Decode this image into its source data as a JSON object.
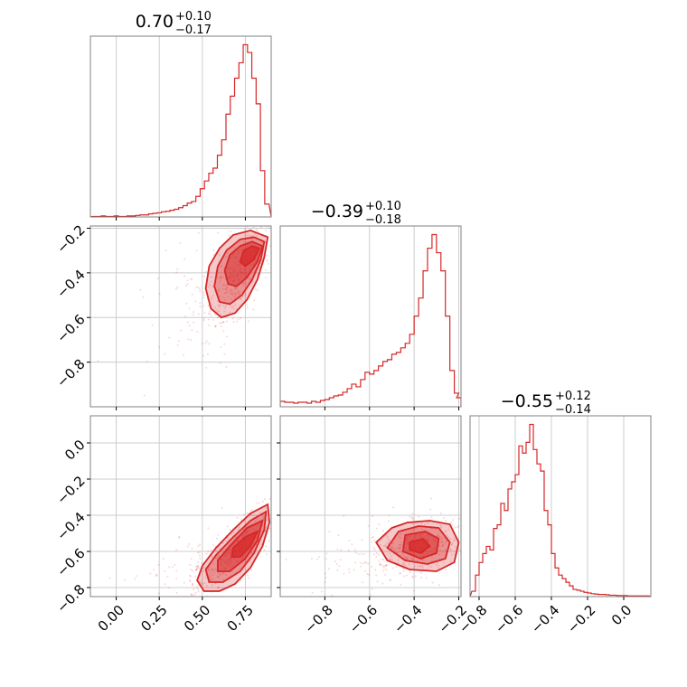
{
  "chart_data": {
    "type": "corner",
    "color": "#d62728",
    "grid": true,
    "parameters": [
      {
        "title_value": "0.70",
        "err_plus": "+0.10",
        "err_minus": "−0.17",
        "range": [
          -0.15,
          0.9
        ],
        "ticks": [
          0.0,
          0.25,
          0.5,
          0.75
        ],
        "tick_labels": [
          "0.00",
          "0.25",
          "0.50",
          "0.75"
        ],
        "hist_centers": [
          -0.125,
          -0.1,
          -0.075,
          -0.05,
          -0.025,
          0.0,
          0.025,
          0.05,
          0.075,
          0.1,
          0.125,
          0.15,
          0.175,
          0.2,
          0.225,
          0.25,
          0.275,
          0.3,
          0.325,
          0.35,
          0.375,
          0.4,
          0.425,
          0.45,
          0.475,
          0.5,
          0.525,
          0.55,
          0.575,
          0.6,
          0.625,
          0.65,
          0.675,
          0.7,
          0.725,
          0.75,
          0.775,
          0.8,
          0.825,
          0.85,
          0.875
        ],
        "hist_counts": [
          1,
          1,
          2,
          1,
          1,
          2,
          1,
          1,
          2,
          2,
          3,
          4,
          4,
          6,
          7,
          8,
          10,
          11,
          13,
          15,
          18,
          22,
          27,
          30,
          40,
          55,
          70,
          85,
          95,
          120,
          150,
          200,
          235,
          270,
          300,
          335,
          320,
          270,
          220,
          90,
          25
        ]
      },
      {
        "title_value": "−0.39",
        "err_plus": "+0.10",
        "err_minus": "−0.18",
        "range": [
          -1.0,
          -0.19
        ],
        "ticks": [
          -0.8,
          -0.6,
          -0.4,
          -0.2
        ],
        "tick_labels": [
          "−0.8",
          "−0.6",
          "−0.4",
          "−0.2"
        ],
        "hist_centers": [
          -0.99,
          -0.97,
          -0.95,
          -0.93,
          -0.91,
          -0.89,
          -0.87,
          -0.85,
          -0.83,
          -0.81,
          -0.79,
          -0.77,
          -0.75,
          -0.73,
          -0.71,
          -0.69,
          -0.67,
          -0.65,
          -0.63,
          -0.61,
          -0.59,
          -0.57,
          -0.55,
          -0.53,
          -0.51,
          -0.49,
          -0.47,
          -0.45,
          -0.43,
          -0.41,
          -0.39,
          -0.37,
          -0.35,
          -0.33,
          -0.31,
          -0.29,
          -0.27,
          -0.25,
          -0.23,
          -0.21,
          -0.2
        ],
        "hist_counts": [
          6,
          5,
          5,
          4,
          5,
          5,
          4,
          6,
          5,
          7,
          8,
          10,
          12,
          13,
          16,
          20,
          25,
          22,
          30,
          38,
          36,
          40,
          45,
          50,
          52,
          58,
          60,
          65,
          70,
          80,
          100,
          120,
          150,
          175,
          190,
          170,
          150,
          100,
          40,
          15,
          10
        ]
      },
      {
        "title_value": "−0.55",
        "err_plus": "+0.12",
        "err_minus": "−0.14",
        "range": [
          -0.85,
          0.15
        ],
        "ticks": [
          -0.8,
          -0.6,
          -0.4,
          -0.2,
          0.0
        ],
        "tick_labels": [
          "−0.8",
          "−0.6",
          "−0.4",
          "−0.2",
          "0.0"
        ],
        "hist_centers": [
          -0.83,
          -0.81,
          -0.79,
          -0.77,
          -0.75,
          -0.73,
          -0.71,
          -0.69,
          -0.67,
          -0.65,
          -0.63,
          -0.61,
          -0.59,
          -0.57,
          -0.55,
          -0.53,
          -0.51,
          -0.49,
          -0.47,
          -0.45,
          -0.43,
          -0.41,
          -0.39,
          -0.37,
          -0.35,
          -0.33,
          -0.31,
          -0.29,
          -0.27,
          -0.25,
          -0.23,
          -0.21,
          -0.19,
          -0.17,
          -0.15,
          -0.13,
          -0.11,
          -0.09,
          -0.07,
          -0.05,
          -0.03,
          -0.01,
          0.01,
          0.03,
          0.05,
          0.07,
          0.09,
          0.11,
          0.13
        ],
        "hist_counts": [
          15,
          60,
          95,
          120,
          140,
          130,
          190,
          200,
          260,
          240,
          300,
          320,
          340,
          420,
          400,
          430,
          480,
          410,
          370,
          350,
          240,
          200,
          120,
          80,
          60,
          50,
          40,
          30,
          20,
          18,
          15,
          12,
          10,
          8,
          7,
          6,
          6,
          5,
          4,
          4,
          3,
          3,
          3,
          2,
          2,
          2,
          2,
          2,
          2
        ]
      }
    ],
    "pairs": [
      {
        "row": 1,
        "col": 0,
        "mean": [
          0.72,
          -0.38
        ],
        "sd": [
          0.1,
          0.11
        ],
        "corr": 0.7,
        "contour_levels": [
          [
            [
              0.88,
              -0.24
            ],
            [
              0.86,
              -0.33
            ],
            [
              0.82,
              -0.43
            ],
            [
              0.76,
              -0.52
            ],
            [
              0.69,
              -0.58
            ],
            [
              0.61,
              -0.6
            ],
            [
              0.55,
              -0.56
            ],
            [
              0.52,
              -0.47
            ],
            [
              0.54,
              -0.37
            ],
            [
              0.6,
              -0.29
            ],
            [
              0.68,
              -0.23
            ],
            [
              0.78,
              -0.21
            ]
          ],
          [
            [
              0.86,
              -0.26
            ],
            [
              0.84,
              -0.34
            ],
            [
              0.79,
              -0.43
            ],
            [
              0.73,
              -0.5
            ],
            [
              0.66,
              -0.54
            ],
            [
              0.6,
              -0.53
            ],
            [
              0.57,
              -0.46
            ],
            [
              0.59,
              -0.37
            ],
            [
              0.64,
              -0.3
            ],
            [
              0.72,
              -0.25
            ],
            [
              0.8,
              -0.24
            ]
          ],
          [
            [
              0.85,
              -0.28
            ],
            [
              0.82,
              -0.35
            ],
            [
              0.76,
              -0.42
            ],
            [
              0.7,
              -0.46
            ],
            [
              0.65,
              -0.45
            ],
            [
              0.63,
              -0.39
            ],
            [
              0.66,
              -0.32
            ],
            [
              0.72,
              -0.28
            ],
            [
              0.79,
              -0.26
            ]
          ],
          [
            [
              0.83,
              -0.29
            ],
            [
              0.8,
              -0.34
            ],
            [
              0.75,
              -0.37
            ],
            [
              0.72,
              -0.35
            ],
            [
              0.74,
              -0.3
            ],
            [
              0.79,
              -0.28
            ]
          ]
        ]
      },
      {
        "row": 2,
        "col": 0,
        "mean": [
          0.7,
          -0.58
        ],
        "sd": [
          0.1,
          0.1
        ],
        "corr": 0.8,
        "contour_levels": [
          [
            [
              0.88,
              -0.34
            ],
            [
              0.89,
              -0.44
            ],
            [
              0.85,
              -0.57
            ],
            [
              0.78,
              -0.69
            ],
            [
              0.69,
              -0.78
            ],
            [
              0.6,
              -0.82
            ],
            [
              0.51,
              -0.82
            ],
            [
              0.47,
              -0.76
            ],
            [
              0.5,
              -0.68
            ],
            [
              0.58,
              -0.58
            ],
            [
              0.68,
              -0.48
            ],
            [
              0.78,
              -0.39
            ]
          ],
          [
            [
              0.87,
              -0.38
            ],
            [
              0.86,
              -0.48
            ],
            [
              0.8,
              -0.61
            ],
            [
              0.72,
              -0.71
            ],
            [
              0.62,
              -0.77
            ],
            [
              0.54,
              -0.77
            ],
            [
              0.52,
              -0.7
            ],
            [
              0.58,
              -0.62
            ],
            [
              0.68,
              -0.52
            ],
            [
              0.78,
              -0.43
            ]
          ],
          [
            [
              0.85,
              -0.43
            ],
            [
              0.82,
              -0.54
            ],
            [
              0.75,
              -0.64
            ],
            [
              0.66,
              -0.71
            ],
            [
              0.59,
              -0.71
            ],
            [
              0.59,
              -0.65
            ],
            [
              0.66,
              -0.57
            ],
            [
              0.76,
              -0.47
            ]
          ],
          [
            [
              0.82,
              -0.49
            ],
            [
              0.78,
              -0.57
            ],
            [
              0.72,
              -0.63
            ],
            [
              0.67,
              -0.63
            ],
            [
              0.68,
              -0.58
            ],
            [
              0.75,
              -0.52
            ]
          ]
        ]
      },
      {
        "row": 2,
        "col": 1,
        "mean": [
          -0.36,
          -0.56
        ],
        "sd": [
          0.1,
          0.07
        ],
        "corr": 0.15,
        "contour_levels": [
          [
            [
              -0.5,
              -0.47
            ],
            [
              -0.43,
              -0.44
            ],
            [
              -0.33,
              -0.43
            ],
            [
              -0.24,
              -0.45
            ],
            [
              -0.2,
              -0.55
            ],
            [
              -0.22,
              -0.66
            ],
            [
              -0.3,
              -0.71
            ],
            [
              -0.42,
              -0.7
            ],
            [
              -0.52,
              -0.65
            ],
            [
              -0.57,
              -0.55
            ]
          ],
          [
            [
              -0.47,
              -0.49
            ],
            [
              -0.38,
              -0.46
            ],
            [
              -0.29,
              -0.47
            ],
            [
              -0.24,
              -0.55
            ],
            [
              -0.26,
              -0.64
            ],
            [
              -0.34,
              -0.67
            ],
            [
              -0.44,
              -0.65
            ],
            [
              -0.52,
              -0.58
            ]
          ],
          [
            [
              -0.44,
              -0.51
            ],
            [
              -0.35,
              -0.49
            ],
            [
              -0.29,
              -0.53
            ],
            [
              -0.3,
              -0.61
            ],
            [
              -0.37,
              -0.64
            ],
            [
              -0.45,
              -0.6
            ]
          ],
          [
            [
              -0.42,
              -0.55
            ],
            [
              -0.36,
              -0.53
            ],
            [
              -0.33,
              -0.57
            ],
            [
              -0.37,
              -0.61
            ],
            [
              -0.42,
              -0.59
            ]
          ]
        ]
      }
    ]
  }
}
